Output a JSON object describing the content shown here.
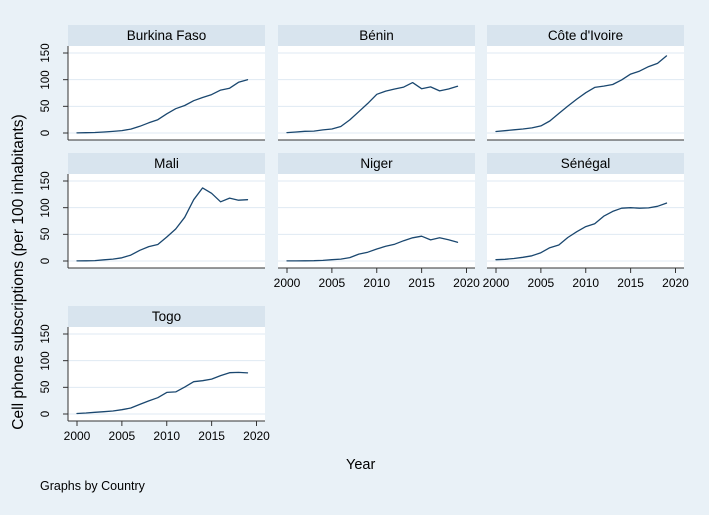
{
  "colors": {
    "background": "#e9f1f7",
    "strip": "#d8e4ee",
    "plot_background": "#ffffff",
    "grid": "#dfeaf3",
    "axis": "#333333",
    "line": "#1a476f",
    "text": "#000000"
  },
  "chart_data": {
    "type": "line",
    "small_multiples": true,
    "layout_hint": "3x3 trellis (7 panels), shared axes, grid on, no legend",
    "ylabel": "Cell phone subscriptions (per 100 inhabitants)",
    "xlabel": "Year",
    "caption": "Graphs by Country",
    "xlim": [
      2000,
      2020
    ],
    "ylim": [
      0,
      150
    ],
    "xticks": [
      2000,
      2005,
      2010,
      2015,
      2020
    ],
    "yticks": [
      0,
      50,
      100,
      150
    ],
    "x": [
      2000,
      2001,
      2002,
      2003,
      2004,
      2005,
      2006,
      2007,
      2008,
      2009,
      2010,
      2011,
      2012,
      2013,
      2014,
      2015,
      2016,
      2017,
      2018,
      2019
    ],
    "series": [
      {
        "name": "Burkina Faso",
        "values": [
          0.2,
          0.6,
          0.9,
          1.9,
          3.0,
          4.5,
          7.3,
          12.5,
          19.2,
          25.0,
          36.0,
          45.5,
          51.5,
          60.5,
          66.5,
          72.0,
          80.5,
          84.0,
          95.0,
          100.0
        ]
      },
      {
        "name": "Bénin",
        "values": [
          0.8,
          1.9,
          3.2,
          3.5,
          5.9,
          7.5,
          12.2,
          24.5,
          40.0,
          55.5,
          72.5,
          78.5,
          82.5,
          86.0,
          94.5,
          83.0,
          86.5,
          79.0,
          82.5,
          87.5
        ]
      },
      {
        "name": "Côte d'Ivoire",
        "values": [
          2.9,
          4.4,
          6.0,
          7.5,
          9.5,
          13.4,
          22.5,
          36.5,
          50.5,
          63.5,
          75.5,
          85.5,
          88.0,
          91.0,
          99.5,
          110.5,
          116.0,
          124.5,
          130.5,
          144.5
        ]
      },
      {
        "name": "Mali",
        "values": [
          0.1,
          0.4,
          0.8,
          2.3,
          3.6,
          6.0,
          11.0,
          20.0,
          27.0,
          31.0,
          45.0,
          60.0,
          82.0,
          115.0,
          137.0,
          127.0,
          111.0,
          118.0,
          114.0,
          115.0
        ]
      },
      {
        "name": "Niger",
        "values": [
          0.1,
          0.2,
          0.3,
          0.6,
          1.2,
          2.5,
          3.5,
          6.3,
          13.0,
          16.5,
          22.5,
          27.5,
          31.5,
          38.0,
          43.5,
          46.5,
          39.5,
          43.5,
          40.0,
          35.0
        ]
      },
      {
        "name": "Sénégal",
        "values": [
          2.5,
          3.1,
          4.6,
          7.0,
          9.7,
          15.5,
          25.0,
          30.0,
          44.0,
          55.0,
          64.5,
          70.0,
          84.0,
          93.0,
          99.0,
          100.0,
          99.0,
          99.5,
          102.5,
          108.5
        ]
      },
      {
        "name": "Togo",
        "values": [
          1.0,
          1.9,
          3.1,
          4.4,
          5.7,
          8.0,
          11.2,
          18.0,
          24.5,
          30.5,
          40.5,
          41.5,
          50.5,
          60.5,
          62.5,
          65.5,
          72.0,
          77.5,
          78.0,
          77.0
        ]
      }
    ]
  }
}
